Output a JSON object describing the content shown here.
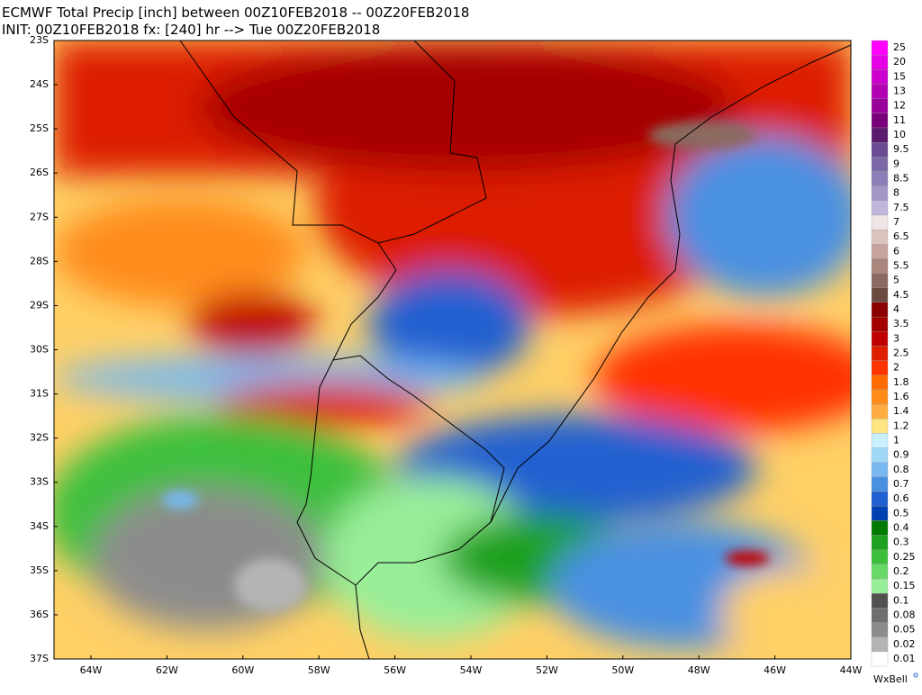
{
  "header": {
    "line1": "ECMWF Total Precip [inch] between 00Z10FEB2018 -- 00Z20FEB2018",
    "line2": "INIT: 00Z10FEB2018 fx: [240] hr --> Tue 00Z20FEB2018"
  },
  "map": {
    "lat_labels": [
      "23S",
      "24S",
      "25S",
      "26S",
      "27S",
      "28S",
      "29S",
      "30S",
      "31S",
      "32S",
      "33S",
      "34S",
      "35S",
      "36S",
      "37S"
    ],
    "lon_labels": [
      "64W",
      "62W",
      "60W",
      "58W",
      "56W",
      "54W",
      "52W",
      "50W",
      "48W",
      "46W",
      "44W"
    ]
  },
  "legend": {
    "items": [
      {
        "label": 25,
        "color": "#ff00ff"
      },
      {
        "label": 20,
        "color": "#e600e6"
      },
      {
        "label": 15,
        "color": "#cc00cc"
      },
      {
        "label": 13,
        "color": "#b300b3"
      },
      {
        "label": 12,
        "color": "#990099"
      },
      {
        "label": 11,
        "color": "#7a007a"
      },
      {
        "label": 10,
        "color": "#5c1a6e"
      },
      {
        "label": 9.5,
        "color": "#6a4c93"
      },
      {
        "label": 9,
        "color": "#7b68a6"
      },
      {
        "label": 8.5,
        "color": "#8c7fb8"
      },
      {
        "label": 8,
        "color": "#a596c8"
      },
      {
        "label": 7.5,
        "color": "#c0b5da"
      },
      {
        "label": 7,
        "color": "#f0e6e6"
      },
      {
        "label": 6.5,
        "color": "#dcc3bd"
      },
      {
        "label": 6,
        "color": "#c6a49c"
      },
      {
        "label": 5.5,
        "color": "#a9857b"
      },
      {
        "label": 5,
        "color": "#8a6a5f"
      },
      {
        "label": 4.5,
        "color": "#6b4a40"
      },
      {
        "label": 4,
        "color": "#8b0000"
      },
      {
        "label": 3.5,
        "color": "#a50000"
      },
      {
        "label": 3,
        "color": "#c00000"
      },
      {
        "label": 2.5,
        "color": "#dd1f00"
      },
      {
        "label": 2,
        "color": "#ff3300"
      },
      {
        "label": 1.8,
        "color": "#ff6a00"
      },
      {
        "label": 1.6,
        "color": "#ff8c1a"
      },
      {
        "label": 1.4,
        "color": "#ffad40"
      },
      {
        "label": 1.2,
        "color": "#ffe680"
      },
      {
        "label": 1,
        "color": "#c8f0ff"
      },
      {
        "label": 0.9,
        "color": "#a0d8f8"
      },
      {
        "label": 0.8,
        "color": "#78b8f0"
      },
      {
        "label": 0.7,
        "color": "#4a90e2"
      },
      {
        "label": 0.6,
        "color": "#2060d0"
      },
      {
        "label": 0.5,
        "color": "#0040b0"
      },
      {
        "label": 0.4,
        "color": "#007a00"
      },
      {
        "label": 0.3,
        "color": "#1fa01f"
      },
      {
        "label": 0.25,
        "color": "#3cc03c"
      },
      {
        "label": 0.2,
        "color": "#66d966"
      },
      {
        "label": 0.15,
        "color": "#99ee99"
      },
      {
        "label": 0.1,
        "color": "#505050"
      },
      {
        "label": 0.08,
        "color": "#6e6e6e"
      },
      {
        "label": 0.05,
        "color": "#8c8c8c"
      },
      {
        "label": 0.02,
        "color": "#b4b4b4"
      },
      {
        "label": 0.01,
        "color": "#ffffff"
      }
    ]
  },
  "credit": "WxBell"
}
